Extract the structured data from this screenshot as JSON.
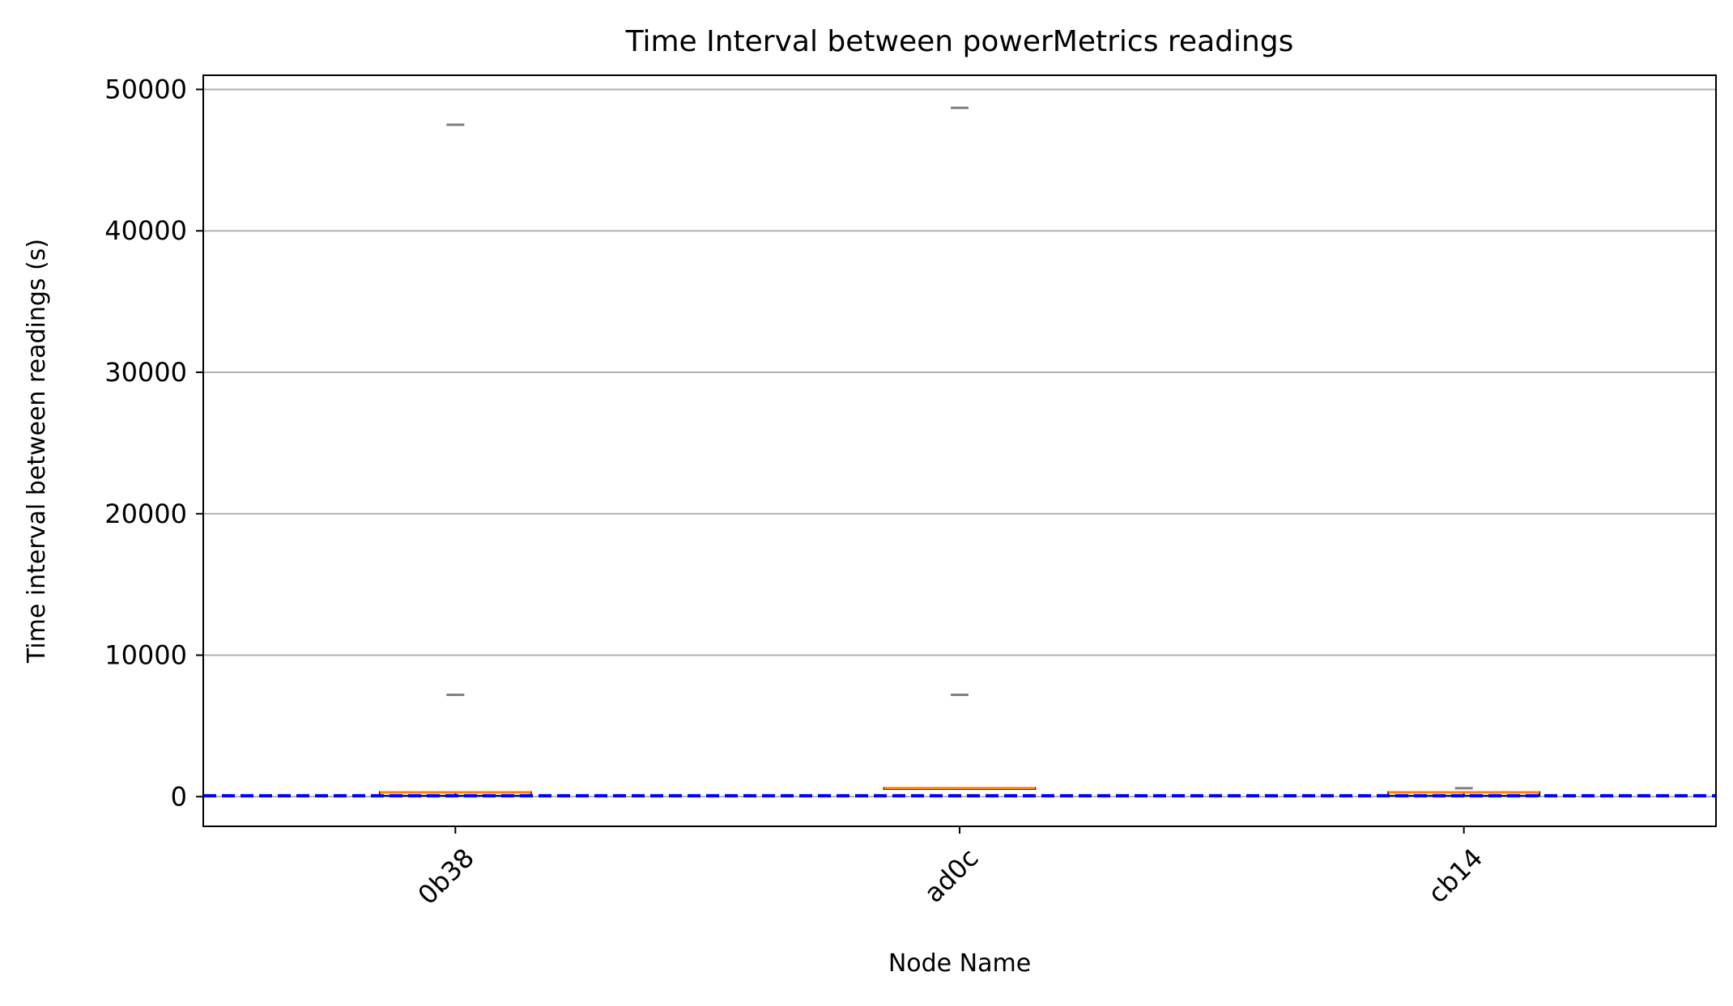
{
  "chart_data": {
    "type": "box",
    "title": "Time Interval between powerMetrics readings",
    "xlabel": "Node Name",
    "ylabel": "Time interval between readings (s)",
    "ylim": [
      -2100,
      51000
    ],
    "yticks": [
      0,
      10000,
      20000,
      30000,
      40000,
      50000
    ],
    "grid": "horizontal",
    "categories": [
      "0b38",
      "ad0c",
      "cb14"
    ],
    "boxes": [
      {
        "category": "0b38",
        "q1": 60,
        "median": 300,
        "q3": 330,
        "whisker_low": 60,
        "whisker_high": 330,
        "outliers": [
          7200,
          47500
        ]
      },
      {
        "category": "ad0c",
        "q1": 600,
        "median": 600,
        "q3": 620,
        "whisker_low": 600,
        "whisker_high": 620,
        "outliers": [
          7200,
          48700
        ]
      },
      {
        "category": "cb14",
        "q1": 60,
        "median": 300,
        "q3": 330,
        "whisker_low": 60,
        "whisker_high": 330,
        "outliers": [
          600
        ]
      }
    ],
    "reference_line": {
      "y": 60,
      "style": "dashed"
    },
    "colors": {
      "median": "#ff7f0e",
      "outlier": "#808080",
      "reference": "#0000ff",
      "grid": "#b0b0b0"
    }
  }
}
